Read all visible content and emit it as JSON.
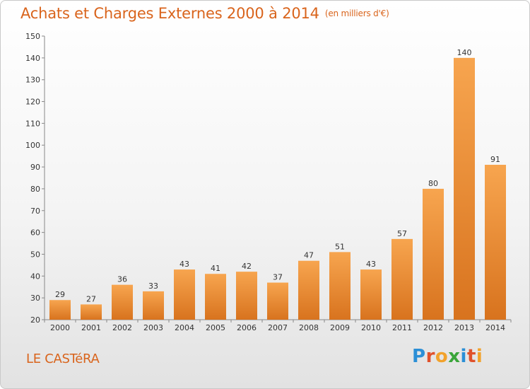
{
  "title": "Achats et Charges Externes 2000 à 2014",
  "subtitle": "(en milliers d'€)",
  "commune": "LE CASTéRA",
  "logo": {
    "letters": [
      "P",
      "r",
      "o",
      "x",
      "i",
      "t",
      "i"
    ],
    "colors": [
      "#2b8fd6",
      "#e0512b",
      "#f2a22b",
      "#3aa53a",
      "#2b8fd6",
      "#e0512b",
      "#f2a22b"
    ]
  },
  "chart_data": {
    "type": "bar",
    "categories": [
      "2000",
      "2001",
      "2002",
      "2003",
      "2004",
      "2005",
      "2006",
      "2007",
      "2008",
      "2009",
      "2010",
      "2011",
      "2012",
      "2013",
      "2014"
    ],
    "values": [
      29,
      27,
      36,
      33,
      43,
      41,
      42,
      37,
      47,
      51,
      43,
      57,
      80,
      140,
      91
    ],
    "ylim": [
      20,
      150
    ],
    "yticks": [
      20,
      30,
      40,
      50,
      60,
      70,
      80,
      90,
      100,
      110,
      120,
      130,
      140,
      150
    ],
    "bar_color_top": "#f7a54f",
    "bar_color_bottom": "#d8731e",
    "grid": false
  }
}
